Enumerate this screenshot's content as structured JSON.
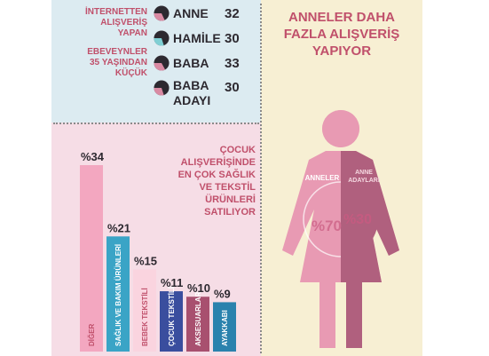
{
  "left_text": [
    "İNTERNETTEN",
    "ALIŞVERİŞ",
    "YAPAN",
    "EBEVEYNLER",
    "35 YAŞINDAN",
    "KÜÇÜK"
  ],
  "rows": [
    {
      "label": "ANNE",
      "value": "32",
      "pie_fraction": 0.32,
      "color": "#d98aa3"
    },
    {
      "label": "HAMİLE",
      "value": "30",
      "pie_fraction": 0.3,
      "color": "#7fcfd4"
    },
    {
      "label": "BABA",
      "value": "33",
      "pie_fraction": 0.33,
      "color": "#d98aa3"
    },
    {
      "label": "BABA ADAYI",
      "value": "30",
      "pie_fraction": 0.3,
      "color": "#d98aa3"
    }
  ],
  "right_title": "ANNELER DAHA FAZLA ALIŞVERİŞ YAPIYOR",
  "figure": {
    "left_label": "ANNELER",
    "left_value": "%70",
    "right_label": "ANNE ADAYLARI",
    "right_value": "%30",
    "body_color": "#e89ab3",
    "accent_color": "#b0607e"
  },
  "middle_text": "ÇOCUK ALIŞVERİŞİNDE EN ÇOK SAĞLIK VE TEKSTİL ÜRÜNLERİ SATILIYOR",
  "chart_data": {
    "type": "bar",
    "categories": [
      "DİĞER",
      "SAĞLIK VE BAKIM ÜRÜNLERİ",
      "BEBEK TEKSTİLİ",
      "ÇOCUK TEKSTİLİ",
      "AKSESUARLAR",
      "AYAKKABI"
    ],
    "value_labels": [
      "%34",
      "%21",
      "%15",
      "%11",
      "%10",
      "%9"
    ],
    "values": [
      34,
      21,
      15,
      11,
      10,
      9
    ],
    "colors": [
      "#f3a7c0",
      "#3aa4c6",
      "#fad4df",
      "#3a4e9e",
      "#a8506f",
      "#2a82ad"
    ],
    "text_colors": [
      "#c0506b",
      "#ffffff",
      "#c0506b",
      "#ffffff",
      "#ffffff",
      "#ffffff"
    ],
    "title": "",
    "xlabel": "",
    "ylabel": "",
    "ylim": [
      0,
      34
    ]
  }
}
